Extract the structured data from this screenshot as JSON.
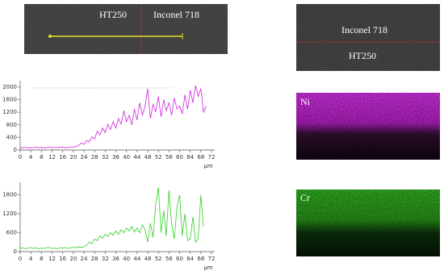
{
  "micrographs": {
    "line_scan": {
      "left_label": "HT250",
      "right_label": "Inconel 718"
    },
    "cross_section": {
      "top_label": "Inconel 718",
      "bottom_label": "HT250"
    },
    "maps": [
      {
        "label": "Ni"
      },
      {
        "label": "Cr"
      }
    ]
  },
  "chart_data": [
    {
      "type": "line",
      "color": "#d020e0",
      "x_label": "μm",
      "x": [
        0,
        1,
        2,
        3,
        4,
        5,
        6,
        7,
        8,
        9,
        10,
        11,
        12,
        13,
        14,
        15,
        16,
        17,
        18,
        19,
        20,
        21,
        22,
        23,
        24,
        25,
        26,
        27,
        28,
        29,
        30,
        31,
        32,
        33,
        34,
        35,
        36,
        37,
        38,
        39,
        40,
        41,
        42,
        43,
        44,
        45,
        46,
        47,
        48,
        49,
        50,
        51,
        52,
        53,
        54,
        55,
        56,
        57,
        58,
        59,
        60,
        61,
        62,
        63,
        64,
        65,
        66,
        67,
        68,
        69,
        70
      ],
      "values": [
        80,
        70,
        90,
        60,
        80,
        75,
        90,
        70,
        85,
        60,
        80,
        90,
        70,
        80,
        75,
        85,
        90,
        70,
        80,
        100,
        90,
        110,
        150,
        220,
        180,
        300,
        260,
        420,
        350,
        600,
        480,
        700,
        550,
        820,
        650,
        900,
        700,
        1000,
        820,
        1250,
        900,
        1100,
        800,
        1300,
        950,
        1500,
        1100,
        1400,
        1950,
        1000,
        1450,
        1200,
        1700,
        1050,
        1600,
        1250,
        1500,
        1100,
        1650,
        1300,
        1400,
        1150,
        1750,
        1300,
        1900,
        1500,
        2050,
        1700,
        1950,
        1200,
        1400
      ],
      "xlim": [
        0,
        72
      ],
      "xticks": [
        0,
        4,
        8,
        12,
        16,
        20,
        24,
        28,
        32,
        36,
        40,
        44,
        48,
        52,
        56,
        60,
        64,
        68,
        72
      ],
      "ylim": [
        0,
        2100
      ],
      "yticks": [
        0,
        400,
        800,
        1200,
        1600,
        2000
      ]
    },
    {
      "type": "line",
      "color": "#30d020",
      "x_label": "μm",
      "x": [
        0,
        1,
        2,
        3,
        4,
        5,
        6,
        7,
        8,
        9,
        10,
        11,
        12,
        13,
        14,
        15,
        16,
        17,
        18,
        19,
        20,
        21,
        22,
        23,
        24,
        25,
        26,
        27,
        28,
        29,
        30,
        31,
        32,
        33,
        34,
        35,
        36,
        37,
        38,
        39,
        40,
        41,
        42,
        43,
        44,
        45,
        46,
        47,
        48,
        49,
        50,
        51,
        52,
        53,
        54,
        55,
        56,
        57,
        58,
        59,
        60,
        61,
        62,
        63,
        64,
        65,
        66,
        67,
        68,
        69
      ],
      "values": [
        100,
        120,
        90,
        110,
        130,
        100,
        120,
        90,
        110,
        100,
        120,
        130,
        100,
        110,
        90,
        120,
        110,
        130,
        100,
        120,
        140,
        120,
        150,
        130,
        160,
        200,
        300,
        250,
        400,
        350,
        500,
        420,
        550,
        480,
        600,
        520,
        650,
        550,
        700,
        600,
        750,
        650,
        800,
        620,
        750,
        600,
        850,
        700,
        300,
        900,
        450,
        1500,
        2050,
        600,
        1300,
        500,
        1950,
        900,
        400,
        1400,
        1800,
        500,
        1200,
        350,
        400,
        1100,
        300,
        400,
        1800,
        800
      ],
      "xlim": [
        0,
        72
      ],
      "xticks": [
        0,
        4,
        8,
        12,
        16,
        20,
        24,
        28,
        32,
        36,
        40,
        44,
        48,
        52,
        56,
        60,
        64,
        68,
        72
      ],
      "ylim": [
        0,
        2100
      ],
      "yticks": [
        0,
        600,
        1200,
        1800
      ]
    }
  ]
}
